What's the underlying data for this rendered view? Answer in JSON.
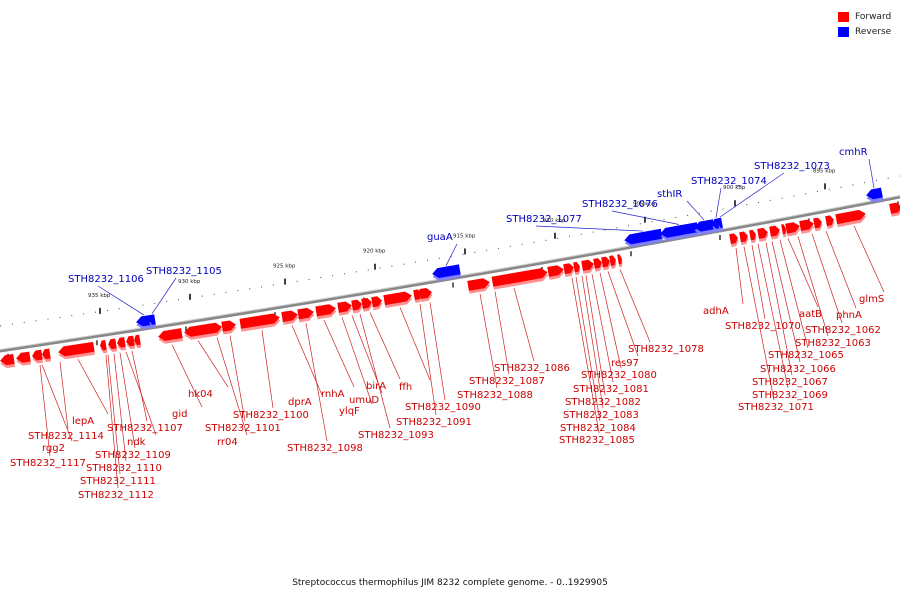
{
  "legend": [
    {
      "label": "Forward",
      "color": "#ff0000"
    },
    {
      "label": "Reverse",
      "color": "#0000ff"
    }
  ],
  "caption": "Streptococcus thermophilus JIM 8232 complete genome. - 0..1929905",
  "colors": {
    "forward": "#ff0000",
    "forward_shadow": "#ff9090",
    "reverse": "#0000ff",
    "reverse_shadow": "#8080ff",
    "axis": "#888888",
    "forward_label": "#cc0000",
    "reverse_label": "#0000bb"
  },
  "scale_labels": [
    "935 kbp",
    "930 kbp",
    "925 kbp",
    "920 kbp",
    "915 kbp",
    "910 kbp",
    "905 kbp",
    "900 kbp",
    "895 kbp"
  ],
  "reverse_features": [
    {
      "name": "STH8232_1106"
    },
    {
      "name": "STH8232_1105"
    },
    {
      "name": "guaA"
    },
    {
      "name": "STH8232_1077"
    },
    {
      "name": "STH8232_1076"
    },
    {
      "name": "sthIR"
    },
    {
      "name": "STH8232_1074"
    },
    {
      "name": "STH8232_1073"
    },
    {
      "name": "cmhR"
    }
  ],
  "forward_features": [
    {
      "name": "STH8232_1117"
    },
    {
      "name": "rgg2"
    },
    {
      "name": "STH8232_1114"
    },
    {
      "name": "lepA"
    },
    {
      "name": "STH8232_1112"
    },
    {
      "name": "STH8232_1111"
    },
    {
      "name": "STH8232_1110"
    },
    {
      "name": "STH8232_1109"
    },
    {
      "name": "ndk"
    },
    {
      "name": "STH8232_1107"
    },
    {
      "name": "gid"
    },
    {
      "name": "hk04"
    },
    {
      "name": "rr04"
    },
    {
      "name": "STH8232_1101"
    },
    {
      "name": "STH8232_1100"
    },
    {
      "name": "dprA"
    },
    {
      "name": "STH8232_1098"
    },
    {
      "name": "rnhA"
    },
    {
      "name": "ylqF"
    },
    {
      "name": "umuD"
    },
    {
      "name": "STH8232_1093"
    },
    {
      "name": "birA"
    },
    {
      "name": "ffh"
    },
    {
      "name": "STH8232_1091"
    },
    {
      "name": "STH8232_1090"
    },
    {
      "name": "STH8232_1088"
    },
    {
      "name": "STH8232_1087"
    },
    {
      "name": "STH8232_1086"
    },
    {
      "name": "STH8232_1085"
    },
    {
      "name": "STH8232_1084"
    },
    {
      "name": "STH8232_1083"
    },
    {
      "name": "STH8232_1082"
    },
    {
      "name": "STH8232_1081"
    },
    {
      "name": "STH8232_1080"
    },
    {
      "name": "res97"
    },
    {
      "name": "STH8232_1078"
    },
    {
      "name": "adhA"
    },
    {
      "name": "STH8232_1071"
    },
    {
      "name": "STH8232_1070"
    },
    {
      "name": "STH8232_1069"
    },
    {
      "name": "STH8232_1067"
    },
    {
      "name": "STH8232_1066"
    },
    {
      "name": "STH8232_1065"
    },
    {
      "name": "aatB"
    },
    {
      "name": "STH8232_1063"
    },
    {
      "name": "STH8232_1062"
    },
    {
      "name": "phnA"
    },
    {
      "name": "glmS"
    }
  ]
}
